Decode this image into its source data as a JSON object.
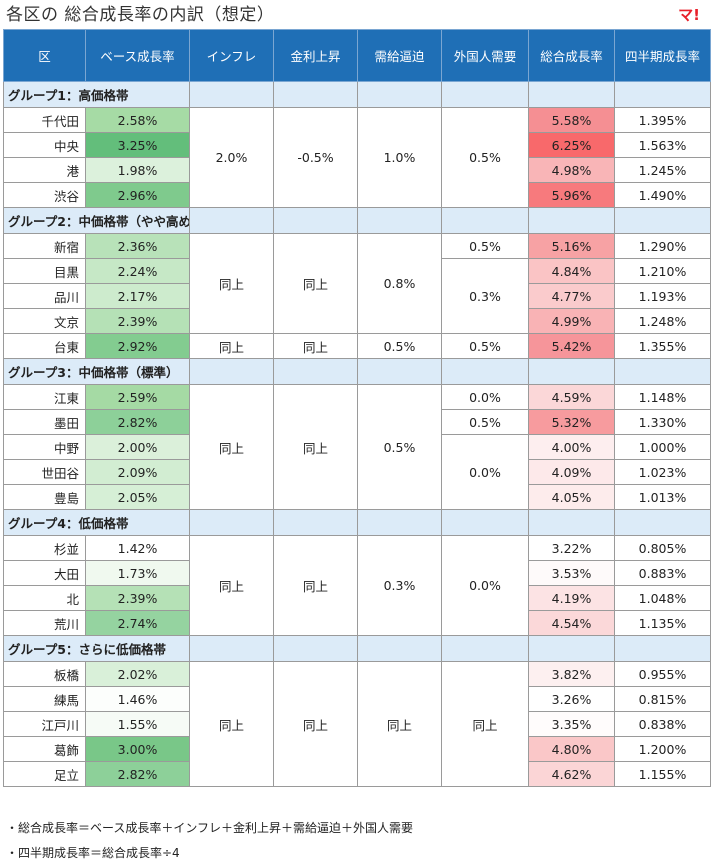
{
  "title": "各区の 総合成長率の内訳（想定）",
  "logo": "マ!",
  "headers": [
    "区",
    "ベース成長率",
    "インフレ",
    "金利上昇",
    "需給逼迫",
    "外国人需要",
    "総合成長率",
    "四半期成長率"
  ],
  "groups": [
    {
      "label": "グループ1：高価格帯",
      "rows": [
        {
          "ward": "千代田",
          "base": "2.58%",
          "base_color": "#a6dba5",
          "total": "5.58%",
          "total_color": "#f58f93",
          "quarterly": "1.395%"
        },
        {
          "ward": "中央",
          "base": "3.25%",
          "base_color": "#63be7b",
          "total": "6.25%",
          "total_color": "#f8696b",
          "quarterly": "1.563%"
        },
        {
          "ward": "港",
          "base": "1.98%",
          "base_color": "#dcf1dc",
          "total": "4.98%",
          "total_color": "#f9b5b7",
          "quarterly": "1.245%"
        },
        {
          "ward": "渋谷",
          "base": "2.96%",
          "base_color": "#7fca8d",
          "total": "5.96%",
          "total_color": "#f77a7d",
          "quarterly": "1.490%"
        }
      ],
      "cells": [
        {
          "col": "inflation",
          "row": 0,
          "span": 4,
          "value": "2.0%"
        },
        {
          "col": "rate",
          "row": 0,
          "span": 4,
          "value": "-0.5%"
        },
        {
          "col": "supply",
          "row": 0,
          "span": 4,
          "value": "1.0%"
        },
        {
          "col": "foreign",
          "row": 0,
          "span": 4,
          "value": "0.5%"
        }
      ]
    },
    {
      "label": "グループ2：中価格帯（やや高め）",
      "rows": [
        {
          "ward": "新宿",
          "base": "2.36%",
          "base_color": "#b8e2b9",
          "total": "5.16%",
          "total_color": "#f7a2a4",
          "quarterly": "1.290%"
        },
        {
          "ward": "目黒",
          "base": "2.24%",
          "base_color": "#c6e8c6",
          "total": "4.84%",
          "total_color": "#fac4c5",
          "quarterly": "1.210%"
        },
        {
          "ward": "品川",
          "base": "2.17%",
          "base_color": "#cdebcd",
          "total": "4.77%",
          "total_color": "#facbcc",
          "quarterly": "1.193%"
        },
        {
          "ward": "文京",
          "base": "2.39%",
          "base_color": "#b5e1b6",
          "total": "4.99%",
          "total_color": "#f9b3b5",
          "quarterly": "1.248%"
        },
        {
          "ward": "台東",
          "base": "2.92%",
          "base_color": "#83cc90",
          "total": "5.42%",
          "total_color": "#f6959a",
          "quarterly": "1.355%"
        }
      ],
      "cells": [
        {
          "col": "inflation",
          "row": 0,
          "span": 4,
          "value": "同上"
        },
        {
          "col": "rate",
          "row": 0,
          "span": 4,
          "value": "同上"
        },
        {
          "col": "supply",
          "row": 0,
          "span": 4,
          "value": "0.8%"
        },
        {
          "col": "foreign",
          "row": 0,
          "span": 1,
          "value": "0.5%"
        },
        {
          "col": "foreign",
          "row": 1,
          "span": 3,
          "value": "0.3%"
        },
        {
          "col": "inflation",
          "row": 4,
          "span": 1,
          "value": "同上"
        },
        {
          "col": "rate",
          "row": 4,
          "span": 1,
          "value": "同上"
        },
        {
          "col": "supply",
          "row": 4,
          "span": 1,
          "value": "0.5%"
        },
        {
          "col": "foreign",
          "row": 4,
          "span": 1,
          "value": "0.5%"
        }
      ]
    },
    {
      "label": "グループ3：中価格帯（標準）",
      "rows": [
        {
          "ward": "江東",
          "base": "2.59%",
          "base_color": "#a5daa4",
          "total": "4.59%",
          "total_color": "#fbd7d8",
          "quarterly": "1.148%"
        },
        {
          "ward": "墨田",
          "base": "2.82%",
          "base_color": "#8dd099",
          "total": "5.32%",
          "total_color": "#f79b9e",
          "quarterly": "1.330%"
        },
        {
          "ward": "中野",
          "base": "2.00%",
          "base_color": "#dbf0da",
          "total": "4.00%",
          "total_color": "#fdeeef",
          "quarterly": "1.000%"
        },
        {
          "ward": "世田谷",
          "base": "2.09%",
          "base_color": "#d2edd2",
          "total": "4.09%",
          "total_color": "#fde9ea",
          "quarterly": "1.023%"
        },
        {
          "ward": "豊島",
          "base": "2.05%",
          "base_color": "#d6efd6",
          "total": "4.05%",
          "total_color": "#fdecec",
          "quarterly": "1.013%"
        }
      ],
      "cells": [
        {
          "col": "inflation",
          "row": 0,
          "span": 5,
          "value": "同上"
        },
        {
          "col": "rate",
          "row": 0,
          "span": 5,
          "value": "同上"
        },
        {
          "col": "supply",
          "row": 0,
          "span": 5,
          "value": "0.5%"
        },
        {
          "col": "foreign",
          "row": 0,
          "span": 1,
          "value": "0.0%"
        },
        {
          "col": "foreign",
          "row": 1,
          "span": 1,
          "value": "0.5%"
        },
        {
          "col": "foreign",
          "row": 2,
          "span": 3,
          "value": "0.0%"
        }
      ]
    },
    {
      "label": "グループ4：低価格帯",
      "rows": [
        {
          "ward": "杉並",
          "base": "1.42%",
          "base_color": "#ffffff",
          "total": "3.22%",
          "total_color": "#ffffff",
          "quarterly": "0.805%"
        },
        {
          "ward": "大田",
          "base": "1.73%",
          "base_color": "#f0f9ef",
          "total": "3.53%",
          "total_color": "#fefafa",
          "quarterly": "0.883%"
        },
        {
          "ward": "北",
          "base": "2.39%",
          "base_color": "#b5e1b6",
          "total": "4.19%",
          "total_color": "#fce3e4",
          "quarterly": "1.048%"
        },
        {
          "ward": "荒川",
          "base": "2.74%",
          "base_color": "#95d3a0",
          "total": "4.54%",
          "total_color": "#fbd8d9",
          "quarterly": "1.135%"
        }
      ],
      "cells": [
        {
          "col": "inflation",
          "row": 0,
          "span": 4,
          "value": "同上"
        },
        {
          "col": "rate",
          "row": 0,
          "span": 4,
          "value": "同上"
        },
        {
          "col": "supply",
          "row": 0,
          "span": 4,
          "value": "0.3%"
        },
        {
          "col": "foreign",
          "row": 0,
          "span": 4,
          "value": "0.0%"
        }
      ]
    },
    {
      "label": "グループ5：さらに低価格帯",
      "rows": [
        {
          "ward": "板橋",
          "base": "2.02%",
          "base_color": "#d9f0d9",
          "total": "3.82%",
          "total_color": "#fdf0f0",
          "quarterly": "0.955%"
        },
        {
          "ward": "練馬",
          "base": "1.46%",
          "base_color": "#fcfefc",
          "total": "3.26%",
          "total_color": "#ffffff",
          "quarterly": "0.815%"
        },
        {
          "ward": "江戸川",
          "base": "1.55%",
          "base_color": "#f6fbf6",
          "total": "3.35%",
          "total_color": "#fffcfc",
          "quarterly": "0.838%"
        },
        {
          "ward": "葛飾",
          "base": "3.00%",
          "base_color": "#79c788",
          "total": "4.80%",
          "total_color": "#fac7c8",
          "quarterly": "1.200%"
        },
        {
          "ward": "足立",
          "base": "2.82%",
          "base_color": "#8dd099",
          "total": "4.62%",
          "total_color": "#fbd5d6",
          "quarterly": "1.155%"
        }
      ],
      "cells": [
        {
          "col": "inflation",
          "row": 0,
          "span": 5,
          "value": "同上"
        },
        {
          "col": "rate",
          "row": 0,
          "span": 5,
          "value": "同上"
        },
        {
          "col": "supply",
          "row": 0,
          "span": 5,
          "value": "同上"
        },
        {
          "col": "foreign",
          "row": 0,
          "span": 5,
          "value": "同上"
        }
      ]
    }
  ],
  "notes": [
    "・総合成長率＝ベース成長率＋インフレ＋金利上昇＋需給逼迫＋外国人需要",
    "・四半期成長率＝総合成長率÷4"
  ]
}
